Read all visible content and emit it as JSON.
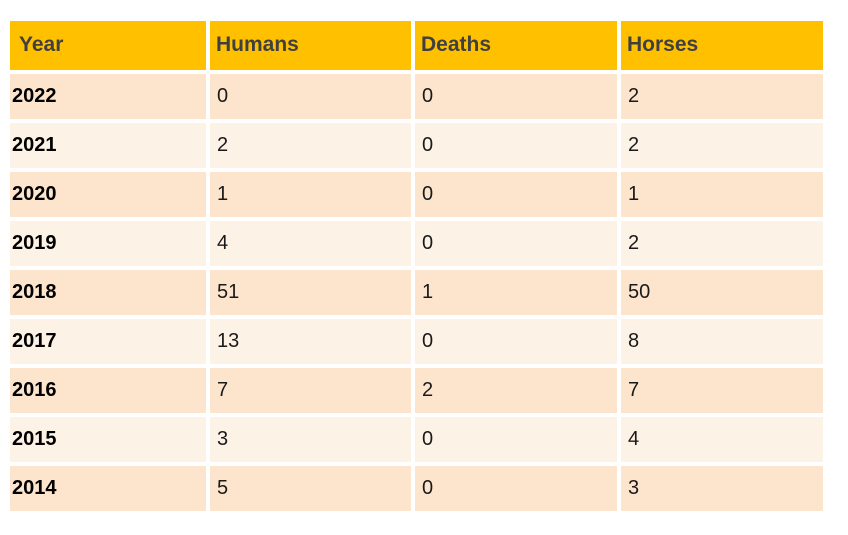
{
  "theme": {
    "header_bg": "#FFC000",
    "header_text": "#404040",
    "row_band_dark": "#FCE5CC",
    "row_band_light": "#FDF2E6",
    "grid_gap": "#FFFFFF",
    "body_text": "#1A1A1A",
    "year_text": "#000000",
    "page_bg": "#FFFFFF"
  },
  "chart_data": {
    "type": "table",
    "title": "",
    "columns": [
      "Year",
      "Humans",
      "Deaths",
      "Horses"
    ],
    "rows": [
      [
        2022,
        0,
        0,
        2
      ],
      [
        2021,
        2,
        0,
        2
      ],
      [
        2020,
        1,
        0,
        1
      ],
      [
        2019,
        4,
        0,
        2
      ],
      [
        2018,
        51,
        1,
        50
      ],
      [
        2017,
        13,
        0,
        8
      ],
      [
        2016,
        7,
        2,
        7
      ],
      [
        2015,
        3,
        0,
        4
      ],
      [
        2014,
        5,
        0,
        3
      ]
    ]
  }
}
